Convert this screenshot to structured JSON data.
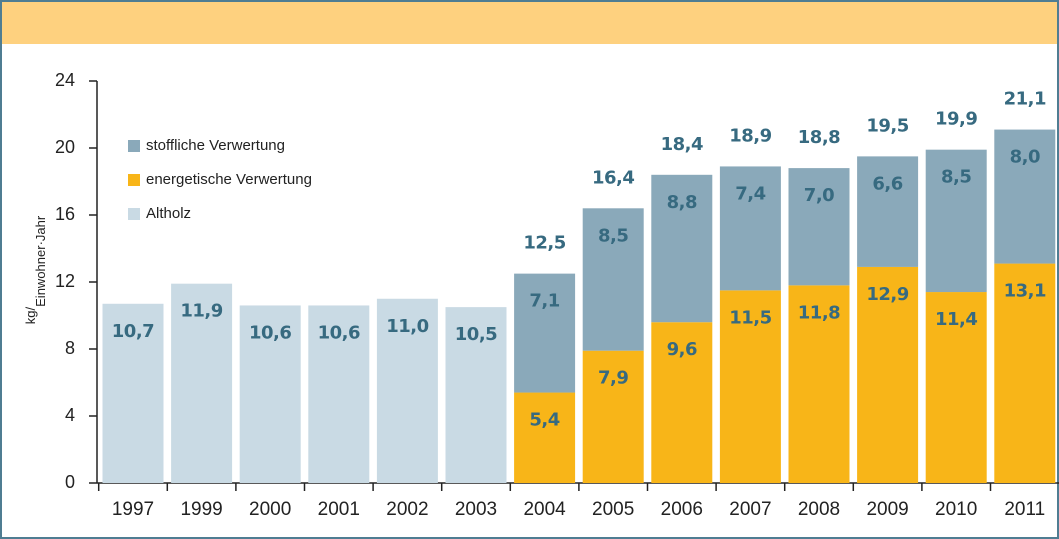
{
  "chart_data": {
    "type": "stacked_bar",
    "y_label": {
      "numerator": "kg/",
      "denominator": "Einwohner·Jahr"
    },
    "categories": [
      "1997",
      "1999",
      "2000",
      "2001",
      "2002",
      "2003",
      "2004",
      "2005",
      "2006",
      "2007",
      "2008",
      "2009",
      "2010",
      "2011"
    ],
    "series": [
      {
        "name": "Altholz",
        "color": "#c9dae4",
        "values": [
          10.7,
          11.9,
          10.6,
          10.6,
          11.0,
          10.5,
          null,
          null,
          null,
          null,
          null,
          null,
          null,
          null
        ],
        "value_labels": [
          "10,7",
          "11,9",
          "10,6",
          "10,6",
          "11,0",
          "10,5",
          null,
          null,
          null,
          null,
          null,
          null,
          null,
          null
        ]
      },
      {
        "name": "energetische Verwertung",
        "color": "#f8b518",
        "values": [
          null,
          null,
          null,
          null,
          null,
          null,
          5.4,
          7.9,
          9.6,
          11.5,
          11.8,
          12.9,
          11.4,
          13.1
        ],
        "value_labels": [
          null,
          null,
          null,
          null,
          null,
          null,
          "5,4",
          "7,9",
          "9,6",
          "11,5",
          "11,8",
          "12,9",
          "11,4",
          "13,1"
        ]
      },
      {
        "name": "stoffliche Verwertung",
        "color": "#8aa9ba",
        "values": [
          null,
          null,
          null,
          null,
          null,
          null,
          7.1,
          8.5,
          8.8,
          7.4,
          7.0,
          6.6,
          8.5,
          8.0
        ],
        "value_labels": [
          null,
          null,
          null,
          null,
          null,
          null,
          "7,1",
          "8,5",
          "8,8",
          "7,4",
          "7,0",
          "6,6",
          "8,5",
          "8,0"
        ]
      }
    ],
    "totals": [
      null,
      null,
      null,
      null,
      null,
      null,
      12.5,
      16.4,
      18.4,
      18.9,
      18.8,
      19.5,
      19.9,
      21.1
    ],
    "total_labels": [
      null,
      null,
      null,
      null,
      null,
      null,
      "12,5",
      "16,4",
      "18,4",
      "18,9",
      "18,8",
      "19,5",
      "19,9",
      "21,1"
    ],
    "legend_order": [
      2,
      1,
      0
    ],
    "legend": "upper left",
    "ylim": [
      0,
      24
    ],
    "yticks": [
      0,
      4,
      8,
      12,
      16,
      20,
      24
    ],
    "grid": false
  }
}
